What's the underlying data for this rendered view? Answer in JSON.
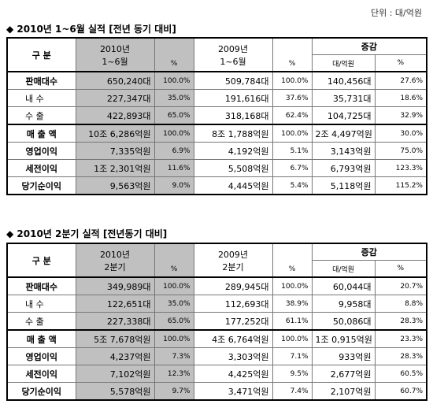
{
  "unit": "단위 : 대/억원",
  "sections": [
    {
      "title": "◆ 2010년 1~6월 실적 [전년 동기 대비]",
      "header": {
        "category": "구 분",
        "current": [
          "2010년",
          "1~6월"
        ],
        "current_pct": "%",
        "previous": [
          "2009년",
          "1~6월"
        ],
        "previous_pct": "%",
        "change": "증감",
        "change_unit": "대/억원",
        "change_pct": "%"
      },
      "rows": [
        [
          "판매대수",
          "650,240대",
          "100.0%",
          "509,784대",
          "100.0%",
          "140,456대",
          "27.6%"
        ],
        [
          "내 수",
          "227,347대",
          "35.0%",
          "191,616대",
          "37.6%",
          "35,731대",
          "18.6%"
        ],
        [
          "수 출",
          "422,893대",
          "65.0%",
          "318,168대",
          "62.4%",
          "104,725대",
          "32.9%"
        ],
        [
          "매 출 액",
          "10조 6,286억원",
          "100.0%",
          "8조 1,788억원",
          "100.0%",
          "2조 4,497억원",
          "30.0%"
        ],
        [
          "영업이익",
          "7,335억원",
          "6.9%",
          "4,192억원",
          "5.1%",
          "3,143억원",
          "75.0%"
        ],
        [
          "세전이익",
          "1조 2,301억원",
          "11.6%",
          "5,508억원",
          "6.7%",
          "6,793억원",
          "123.3%"
        ],
        [
          "당기순이익",
          "9,563억원",
          "9.0%",
          "4,445억원",
          "5.4%",
          "5,118억원",
          "115.2%"
        ]
      ]
    },
    {
      "title": "◆ 2010년 2분기 실적 [전년동기 대비]",
      "header": {
        "category": "구 분",
        "current": [
          "2010년",
          "2분기"
        ],
        "current_pct": "%",
        "previous": [
          "2009년",
          "2분기"
        ],
        "previous_pct": "%",
        "change": "증감",
        "change_unit": "대/억원",
        "change_pct": "%"
      },
      "rows": [
        [
          "판매대수",
          "349,989대",
          "100.0%",
          "289,945대",
          "100.0%",
          "60,044대",
          "20.7%"
        ],
        [
          "내 수",
          "122,651대",
          "35.0%",
          "112,693대",
          "38.9%",
          "9,958대",
          "8.8%"
        ],
        [
          "수 출",
          "227,338대",
          "65.0%",
          "177,252대",
          "61.1%",
          "50,086대",
          "28.3%"
        ],
        [
          "매 출 액",
          "5조 7,678억원",
          "100.0%",
          "4조 6,764억원",
          "100.0%",
          "1조 0,915억원",
          "23.3%"
        ],
        [
          "영업이익",
          "4,237억원",
          "7.3%",
          "3,303억원",
          "7.1%",
          "933억원",
          "28.3%"
        ],
        [
          "세전이익",
          "7,102억원",
          "12.3%",
          "4,425억원",
          "9.5%",
          "2,677억원",
          "60.5%"
        ],
        [
          "당기순이익",
          "5,578억원",
          "9.7%",
          "3,471억원",
          "7.4%",
          "2,107억원",
          "60.7%"
        ]
      ]
    }
  ]
}
